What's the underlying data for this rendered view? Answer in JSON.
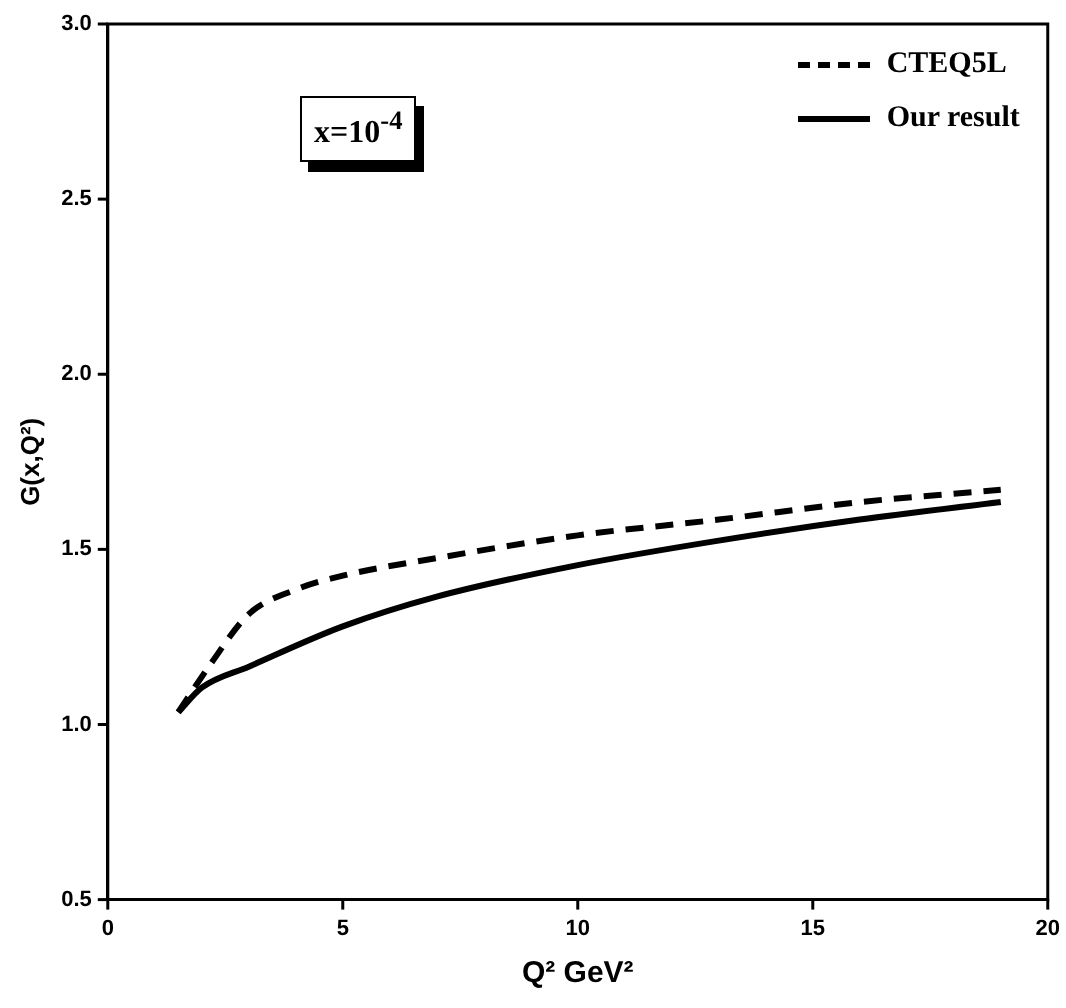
{
  "chart_data": {
    "type": "line",
    "xlabel": "Q² GeV²",
    "ylabel": "G(x,Q²)",
    "xlim": [
      0,
      20
    ],
    "xticks": [
      0,
      5,
      10,
      15,
      20
    ],
    "ylim": [
      0.5,
      3.0
    ],
    "yticks": [
      {
        "value": 0.5,
        "label": "0.5"
      },
      {
        "value": 1.0,
        "label": "1.0"
      },
      {
        "value": 1.5,
        "label": "1.5"
      },
      {
        "value": 2.0,
        "label": "2.0"
      },
      {
        "value": 2.5,
        "label": "2.5"
      },
      {
        "value": 3.0,
        "label": "3.0"
      }
    ],
    "grid": false,
    "legend": "top right",
    "marker": "none",
    "annotations": [
      "x=10$^{-4}$"
    ],
    "series": [
      {
        "name": "CTEQ5L",
        "color": "#000000",
        "line_style": "dashed",
        "x": [
          1.5,
          2.2,
          3,
          4,
          5,
          7,
          10,
          13,
          16,
          19
        ],
        "values": [
          1.035,
          1.175,
          1.315,
          1.385,
          1.425,
          1.475,
          1.54,
          1.585,
          1.635,
          1.67
        ]
      },
      {
        "name": "Our result",
        "color": "#000000",
        "line_style": "solid",
        "x": [
          1.5,
          2,
          3,
          5,
          7,
          10,
          13,
          16,
          19
        ],
        "values": [
          1.035,
          1.105,
          1.165,
          1.28,
          1.365,
          1.455,
          1.525,
          1.585,
          1.635
        ]
      }
    ]
  }
}
